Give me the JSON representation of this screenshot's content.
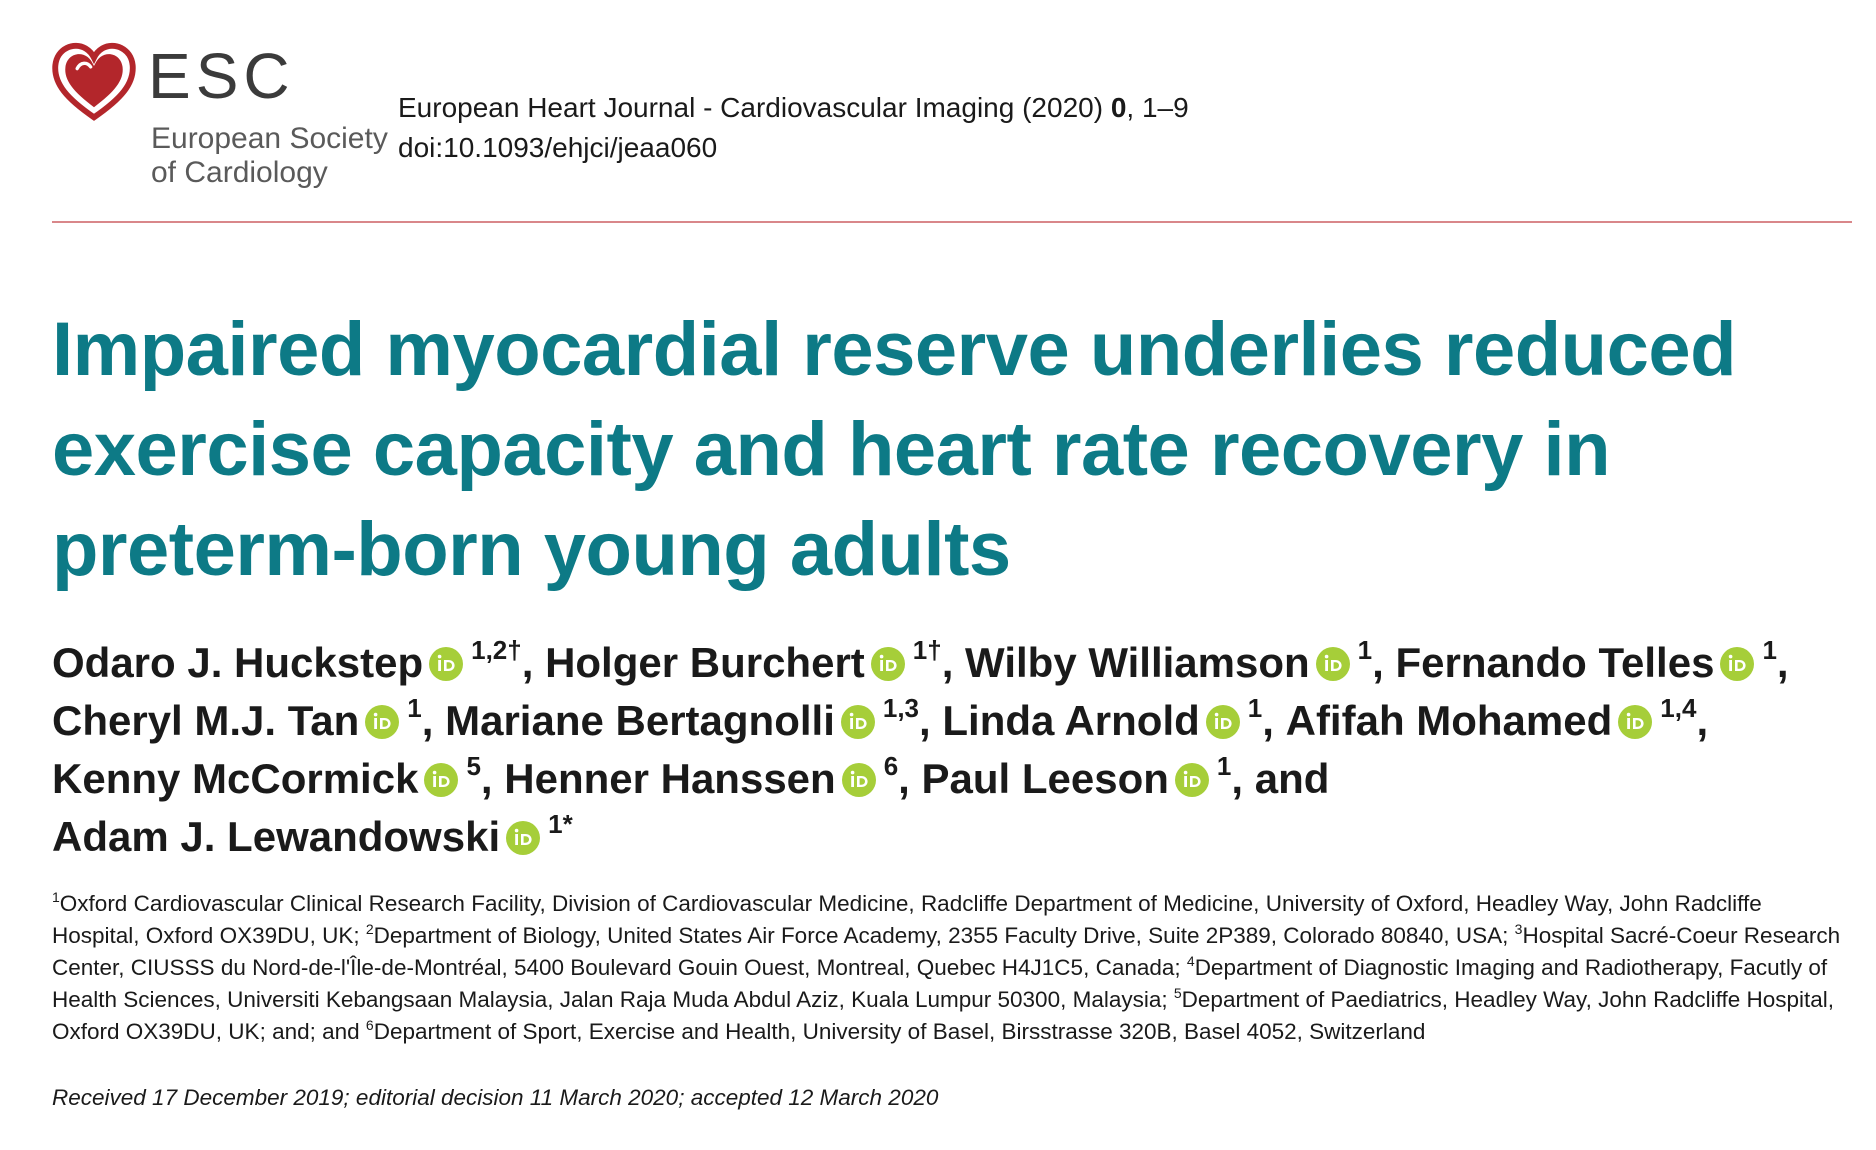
{
  "logo": {
    "abbr": "ESC",
    "full_line1": "European Society",
    "full_line2": "of Cardiology",
    "icon": "heart-logo-icon",
    "color": "#b3262b"
  },
  "journal": {
    "citation_prefix": "European Heart Journal - Cardiovascular Imaging (2020) ",
    "volume": "0",
    "pages": ", 1–9",
    "doi": "doi:10.1093/ehjci/jeaa060"
  },
  "colors": {
    "title": "#0d7a86",
    "rule": "#d9878a",
    "orcid": "#a6ce39"
  },
  "title": "Impaired myocardial reserve underlies reduced exercise capacity and heart rate recovery in preterm-born young adults",
  "authors": [
    {
      "name": "Odaro J. Huckstep",
      "sup": "1,2†",
      "sep": ", "
    },
    {
      "name": "Holger Burchert",
      "sup": "1†",
      "sep": ", "
    },
    {
      "name": "Wilby Williamson",
      "sup": "1",
      "sep": ", "
    },
    {
      "name": "Fernando Telles",
      "sup": "1",
      "sep": ", "
    },
    {
      "name": "Cheryl M.J. Tan",
      "sup": "1",
      "sep": ", "
    },
    {
      "name": "Mariane Bertagnolli",
      "sup": "1,3",
      "sep": ", "
    },
    {
      "name": "Linda Arnold",
      "sup": "1",
      "sep": ", "
    },
    {
      "name": "Afifah Mohamed",
      "sup": "1,4",
      "sep": ", "
    },
    {
      "name": "Kenny McCormick",
      "sup": "5",
      "sep": ", "
    },
    {
      "name": "Henner Hanssen",
      "sup": "6",
      "sep": ", "
    },
    {
      "name": "Paul Leeson",
      "sup": "1",
      "sep": ", and "
    },
    {
      "name": "Adam J. Lewandowski",
      "sup": "1*",
      "sep": ""
    }
  ],
  "affiliations": [
    {
      "sup": "1",
      "text": "Oxford Cardiovascular Clinical Research Facility, Division of Cardiovascular Medicine, Radcliffe Department of Medicine, University of Oxford, Headley Way, John Radcliffe Hospital, Oxford OX39DU, UK; "
    },
    {
      "sup": "2",
      "text": "Department of Biology, United States Air Force Academy, 2355 Faculty Drive, Suite 2P389, Colorado 80840, USA; "
    },
    {
      "sup": "3",
      "text": "Hospital Sacré-Coeur Research Center, CIUSSS du Nord-de-l'Île-de-Montréal, 5400 Boulevard Gouin Ouest, Montreal, Quebec H4J1C5, Canada; "
    },
    {
      "sup": "4",
      "text": "Department of Diagnostic Imaging and Radiotherapy, Facutly of Health Sciences, Universiti Kebangsaan Malaysia, Jalan Raja Muda Abdul Aziz, Kuala Lumpur 50300, Malaysia; "
    },
    {
      "sup": "5",
      "text": "Department of Paediatrics, Headley Way, John Radcliffe Hospital, Oxford OX39DU, UK; and; and "
    },
    {
      "sup": "6",
      "text": "Department of Sport, Exercise and Health, University of Basel, Birsstrasse 320B, Basel 4052, Switzerland"
    }
  ],
  "received": "Received 17 December 2019; editorial decision 11 March 2020; accepted 12 March 2020"
}
